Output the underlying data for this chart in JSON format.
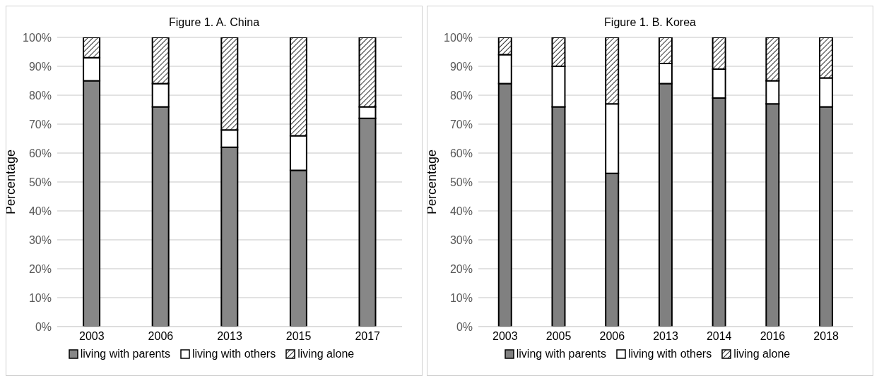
{
  "chart_data": [
    {
      "type": "bar",
      "title": "Figure 1. A. China",
      "ylabel": "Percentage",
      "stacked": true,
      "categories": [
        "2003",
        "2006",
        "2013",
        "2015",
        "2017"
      ],
      "series": [
        {
          "name": "living with parents",
          "color": "#878787",
          "values": [
            85,
            76,
            62,
            54,
            72
          ]
        },
        {
          "name": "living with others",
          "color": "#ffffff",
          "values": [
            8,
            8,
            6,
            12,
            4
          ]
        },
        {
          "name": "living alone",
          "color": "#000000",
          "values": [
            7,
            16,
            32,
            34,
            24
          ]
        }
      ],
      "ylim": [
        0,
        100
      ],
      "yticks": [
        {
          "value": 0,
          "label": "0%"
        },
        {
          "value": 10,
          "label": "10%"
        },
        {
          "value": 20,
          "label": "20%"
        },
        {
          "value": 30,
          "label": "30%"
        },
        {
          "value": 40,
          "label": "40%"
        },
        {
          "value": 50,
          "label": "50%"
        },
        {
          "value": 60,
          "label": "60%"
        },
        {
          "value": 70,
          "label": "70%"
        },
        {
          "value": 80,
          "label": "80%"
        },
        {
          "value": 90,
          "label": "90%"
        },
        {
          "value": 100,
          "label": "100%"
        }
      ],
      "grid": "y",
      "legend": "bottom"
    },
    {
      "type": "bar",
      "title": "Figure 1. B. Korea",
      "ylabel": "Percentage",
      "stacked": true,
      "categories": [
        "2003",
        "2005",
        "2006",
        "2013",
        "2014",
        "2016",
        "2018"
      ],
      "series": [
        {
          "name": "living with parents",
          "color": "#808080",
          "values": [
            84,
            76,
            53,
            84,
            79,
            77,
            76
          ]
        },
        {
          "name": "living with others",
          "color": "#ffffff",
          "values": [
            10,
            14,
            24,
            7,
            10,
            8,
            10
          ]
        },
        {
          "name": "living alone",
          "color": "#000000",
          "values": [
            6,
            10,
            23,
            9,
            11,
            15,
            14
          ]
        }
      ],
      "ylim": [
        0,
        100
      ],
      "yticks": [
        {
          "value": 0,
          "label": "0%"
        },
        {
          "value": 10,
          "label": "10%"
        },
        {
          "value": 20,
          "label": "20%"
        },
        {
          "value": 30,
          "label": "30%"
        },
        {
          "value": 40,
          "label": "40%"
        },
        {
          "value": 50,
          "label": "50%"
        },
        {
          "value": 60,
          "label": "60%"
        },
        {
          "value": 70,
          "label": "70%"
        },
        {
          "value": 80,
          "label": "80%"
        },
        {
          "value": 90,
          "label": "90%"
        },
        {
          "value": 100,
          "label": "100%"
        }
      ],
      "grid": "y",
      "legend": "bottom"
    }
  ]
}
